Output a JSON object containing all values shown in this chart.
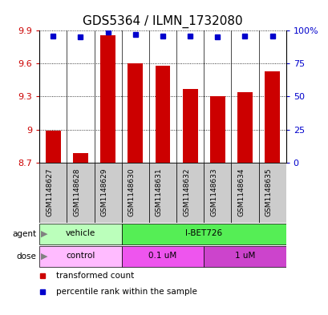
{
  "title": "GDS5364 / ILMN_1732080",
  "samples": [
    "GSM1148627",
    "GSM1148628",
    "GSM1148629",
    "GSM1148630",
    "GSM1148631",
    "GSM1148632",
    "GSM1148633",
    "GSM1148634",
    "GSM1148635"
  ],
  "bar_values": [
    8.99,
    8.79,
    9.86,
    9.6,
    9.58,
    9.37,
    9.3,
    9.34,
    9.53
  ],
  "dot_percentiles": [
    96,
    95,
    99,
    97,
    96,
    96,
    95,
    96,
    96
  ],
  "bar_color": "#cc0000",
  "dot_color": "#0000cc",
  "ymin": 8.7,
  "ymax": 9.9,
  "yticks": [
    8.7,
    9.0,
    9.3,
    9.6,
    9.9
  ],
  "ytick_labels": [
    "8.7",
    "9",
    "9.3",
    "9.6",
    "9.9"
  ],
  "right_yticks": [
    0,
    25,
    50,
    75,
    100
  ],
  "right_ytick_labels": [
    "0",
    "25",
    "50",
    "75",
    "100%"
  ],
  "agent_groups": [
    {
      "label": "vehicle",
      "start": 0,
      "end": 3,
      "color": "#bbffbb"
    },
    {
      "label": "I-BET726",
      "start": 3,
      "end": 9,
      "color": "#55ee55"
    }
  ],
  "dose_groups": [
    {
      "label": "control",
      "start": 0,
      "end": 3,
      "color": "#ffbbff"
    },
    {
      "label": "0.1 uM",
      "start": 3,
      "end": 6,
      "color": "#ee55ee"
    },
    {
      "label": "1 uM",
      "start": 6,
      "end": 9,
      "color": "#cc44cc"
    }
  ],
  "legend_items": [
    {
      "color": "#cc0000",
      "label": "transformed count"
    },
    {
      "color": "#0000cc",
      "label": "percentile rank within the sample"
    }
  ],
  "title_fontsize": 11,
  "tick_fontsize": 8,
  "sample_fontsize": 6.5,
  "row_fontsize": 7.5
}
